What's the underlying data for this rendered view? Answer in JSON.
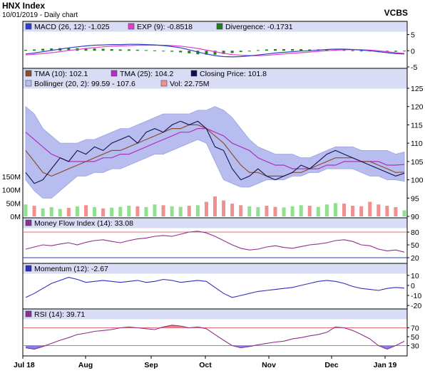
{
  "header": {
    "title": "HNX Index",
    "subtitle": "10/01/2019 - Daily chart",
    "source": "VCBS"
  },
  "colors": {
    "panel_bg": "#ffffff",
    "legend_bg": "#d8dcf4",
    "bollinger_fill": "#b8bdf0",
    "close": "#101050",
    "tma10": "#8a5030",
    "tma25": "#b030c0",
    "macd": "#3040c8",
    "exp": "#e040d0",
    "divergence": "#208020",
    "vol_up": "#90e090",
    "vol_down": "#f09090",
    "mfi": "#903090",
    "momentum": "#3030c0",
    "rsi": "#903090",
    "rsi_over": "#f08080",
    "rsi_under": "#8080f0",
    "level_line": "#e07070"
  },
  "chart_data": [
    {
      "panel": "macd",
      "type": "line",
      "legend": [
        {
          "label": "MACD (26, 12): -1.025",
          "color": "#3040c8"
        },
        {
          "label": "EXP (9): -0.8518",
          "color": "#e040d0"
        },
        {
          "label": "Divergence: -0.1731",
          "color": "#208020"
        }
      ],
      "ylim": [
        -5,
        6
      ],
      "yticks": [
        "5",
        "0",
        "-5"
      ],
      "series": [
        {
          "name": "MACD",
          "values": [
            -1.0,
            -0.7,
            -0.3,
            0.1,
            0.5,
            0.9,
            1.2,
            1.5,
            1.7,
            1.8,
            1.9,
            1.9,
            2.0,
            2.0,
            1.9,
            1.8,
            1.6,
            1.3,
            0.9,
            0.3,
            -0.4,
            -1.0,
            -1.5,
            -1.8,
            -1.9,
            -1.8,
            -1.6,
            -1.3,
            -1.0,
            -0.7,
            -0.5,
            -0.3,
            -0.1,
            0.0,
            0.2,
            0.4,
            0.5,
            0.5,
            0.4,
            0.2,
            0.0,
            -0.3,
            -0.6,
            -0.9,
            -1.0
          ]
        },
        {
          "name": "EXP",
          "values": [
            -1.3,
            -1.1,
            -0.9,
            -0.6,
            -0.3,
            0.1,
            0.4,
            0.7,
            1.0,
            1.2,
            1.4,
            1.5,
            1.6,
            1.7,
            1.7,
            1.7,
            1.7,
            1.6,
            1.4,
            1.1,
            0.7,
            0.2,
            -0.3,
            -0.8,
            -1.2,
            -1.4,
            -1.5,
            -1.5,
            -1.4,
            -1.2,
            -1.0,
            -0.8,
            -0.6,
            -0.4,
            -0.2,
            0.0,
            0.2,
            0.3,
            0.3,
            0.3,
            0.2,
            0.0,
            -0.3,
            -0.6,
            -0.85
          ]
        },
        {
          "name": "Divergence",
          "values": [
            0.3,
            0.4,
            0.6,
            0.7,
            0.8,
            0.8,
            0.8,
            0.8,
            0.7,
            0.6,
            0.5,
            0.4,
            0.4,
            0.3,
            0.2,
            0.1,
            -0.1,
            -0.3,
            -0.5,
            -0.8,
            -1.1,
            -1.2,
            -1.2,
            -1.0,
            -0.7,
            -0.4,
            -0.1,
            0.2,
            0.4,
            0.5,
            0.5,
            0.5,
            0.5,
            0.4,
            0.4,
            0.4,
            0.3,
            0.2,
            0.1,
            -0.1,
            -0.2,
            -0.3,
            -0.3,
            -0.3,
            -0.17
          ]
        }
      ]
    },
    {
      "panel": "price",
      "type": "line",
      "legend": [
        {
          "label": "TMA (10): 102.1",
          "color": "#8a5030"
        },
        {
          "label": "TMA (25): 104.2",
          "color": "#b030c0"
        },
        {
          "label": "Closing Price: 101.8",
          "color": "#101050"
        },
        {
          "label": "Bollinger (20, 2): 99.59 - 107.6",
          "color": "#b8bdf0"
        },
        {
          "label": "Vol: 22.75M",
          "color": "#f09090"
        }
      ],
      "ylim": [
        90,
        125
      ],
      "yticks": [
        "125",
        "120",
        "115",
        "110",
        "105",
        "100",
        "95",
        "90"
      ],
      "vol_ticks": [
        "150M",
        "100M",
        "50M",
        "0M"
      ],
      "vol_max": 150,
      "x_labels": [
        "Jul 18",
        "Aug",
        "Sep",
        "Oct",
        "Nov",
        "Dec",
        "Jan 19"
      ],
      "series": [
        {
          "name": "Closing Price",
          "values": [
            102,
            99,
            100,
            103,
            106,
            105,
            108,
            107,
            109,
            108,
            110,
            111,
            112,
            110,
            113,
            114,
            113,
            115,
            116,
            115,
            116,
            114,
            109,
            108,
            103,
            100,
            101,
            103,
            101,
            100,
            101,
            102,
            104,
            103,
            105,
            107,
            108,
            107,
            106,
            105,
            104,
            103,
            102,
            101,
            101.8
          ]
        },
        {
          "name": "TMA (10)",
          "values": [
            108,
            105,
            102,
            101,
            102,
            103,
            104,
            105,
            106,
            107,
            108,
            108,
            109,
            110,
            111,
            112,
            113,
            114,
            114,
            115,
            115,
            114,
            112,
            110,
            107,
            104,
            102,
            102,
            101,
            101,
            101,
            102,
            102,
            103,
            104,
            105,
            106,
            106,
            106,
            105,
            105,
            104,
            103,
            102,
            102.1
          ]
        },
        {
          "name": "TMA (25)",
          "values": [
            113,
            111,
            109,
            107,
            106,
            105,
            105,
            105,
            105,
            106,
            106,
            107,
            107,
            108,
            109,
            110,
            111,
            112,
            113,
            113,
            114,
            114,
            113,
            112,
            110,
            109,
            108,
            106,
            105,
            104,
            104,
            103,
            103,
            103,
            103,
            104,
            104,
            105,
            105,
            105,
            105,
            105,
            104,
            104,
            104.2
          ]
        },
        {
          "name": "Bollinger Upper",
          "values": [
            120,
            118,
            114,
            112,
            110,
            110,
            110,
            111,
            111,
            112,
            113,
            114,
            114,
            115,
            116,
            117,
            118,
            118,
            118,
            118,
            119,
            119,
            120,
            119,
            117,
            114,
            111,
            109,
            108,
            107,
            107,
            107,
            106,
            106,
            107,
            108,
            109,
            109,
            109,
            108,
            108,
            108,
            108,
            107,
            107.6
          ]
        },
        {
          "name": "Bollinger Lower",
          "values": [
            100,
            97,
            95,
            95,
            97,
            99,
            101,
            101,
            102,
            102,
            103,
            103,
            104,
            105,
            106,
            107,
            107,
            108,
            109,
            110,
            111,
            110,
            105,
            100,
            99,
            98,
            98,
            99,
            100,
            100,
            100,
            101,
            101,
            102,
            102,
            103,
            103,
            103,
            103,
            102,
            101,
            101,
            100,
            100,
            99.59
          ]
        }
      ],
      "volume": [
        45,
        40,
        30,
        35,
        28,
        32,
        38,
        42,
        35,
        30,
        33,
        36,
        40,
        38,
        35,
        45,
        42,
        38,
        36,
        40,
        42,
        55,
        75,
        60,
        48,
        42,
        38,
        35,
        40,
        36,
        34,
        38,
        42,
        40,
        36,
        45,
        50,
        48,
        40,
        38,
        55,
        45,
        40,
        35,
        22.75
      ]
    },
    {
      "panel": "mfi",
      "type": "line",
      "legend": [
        {
          "label": "Money Flow Index (14): 33.08",
          "color": "#903090"
        }
      ],
      "ylim": [
        10,
        90
      ],
      "yticks": [
        "80",
        "50",
        "20"
      ],
      "levels": [
        80,
        20
      ],
      "series": [
        {
          "name": "Money Flow Index",
          "values": [
            40,
            45,
            50,
            48,
            52,
            55,
            50,
            56,
            60,
            62,
            58,
            55,
            60,
            64,
            66,
            70,
            72,
            70,
            75,
            80,
            82,
            78,
            70,
            60,
            50,
            42,
            38,
            40,
            45,
            48,
            44,
            42,
            46,
            50,
            52,
            55,
            60,
            62,
            58,
            50,
            48,
            40,
            36,
            38,
            33.08
          ]
        }
      ]
    },
    {
      "panel": "momentum",
      "type": "line",
      "legend": [
        {
          "label": "Momentum (12): -2.67",
          "color": "#3030c0"
        }
      ],
      "ylim": [
        -22,
        12
      ],
      "yticks": [
        "10",
        "0",
        "-10",
        "-20"
      ],
      "series": [
        {
          "name": "Momentum",
          "values": [
            -12,
            -8,
            -3,
            2,
            5,
            8,
            6,
            3,
            4,
            5,
            4,
            3,
            4,
            5,
            3,
            4,
            6,
            5,
            3,
            4,
            5,
            4,
            -2,
            -8,
            -12,
            -10,
            -8,
            -6,
            -5,
            -4,
            -3,
            -2,
            0,
            2,
            4,
            5,
            4,
            2,
            -1,
            -3,
            -4,
            -5,
            -3,
            -2,
            -2.67
          ]
        }
      ]
    },
    {
      "panel": "rsi",
      "type": "line",
      "legend": [
        {
          "label": "RSI (14): 39.71",
          "color": "#903090"
        }
      ],
      "ylim": [
        10,
        90
      ],
      "yticks": [
        "70",
        "50",
        "30"
      ],
      "levels": [
        70,
        30
      ],
      "series": [
        {
          "name": "RSI",
          "values": [
            25,
            22,
            28,
            35,
            42,
            48,
            55,
            58,
            62,
            64,
            66,
            70,
            72,
            70,
            68,
            66,
            72,
            76,
            74,
            70,
            72,
            68,
            55,
            42,
            30,
            25,
            28,
            32,
            35,
            38,
            40,
            45,
            48,
            52,
            55,
            60,
            72,
            70,
            64,
            55,
            45,
            30,
            22,
            30,
            39.71
          ]
        }
      ]
    }
  ]
}
